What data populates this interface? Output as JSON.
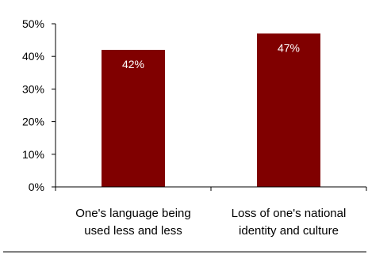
{
  "chart_data": {
    "type": "bar",
    "categories": [
      [
        "One's language being",
        "used less and less"
      ],
      [
        "Loss of one's national",
        "identity and culture"
      ]
    ],
    "values": [
      42,
      47
    ],
    "data_labels": [
      "42%",
      "47%"
    ],
    "y_ticks": [
      0,
      10,
      20,
      30,
      40,
      50
    ],
    "y_tick_labels": [
      "0%",
      "10%",
      "20%",
      "30%",
      "40%",
      "50%"
    ],
    "ylim": [
      0,
      50
    ],
    "grid": false,
    "legend": "none",
    "colors": {
      "bar": "#800000",
      "axis": "#000000",
      "data_label": "#ffffff",
      "divider": "#000000"
    }
  }
}
